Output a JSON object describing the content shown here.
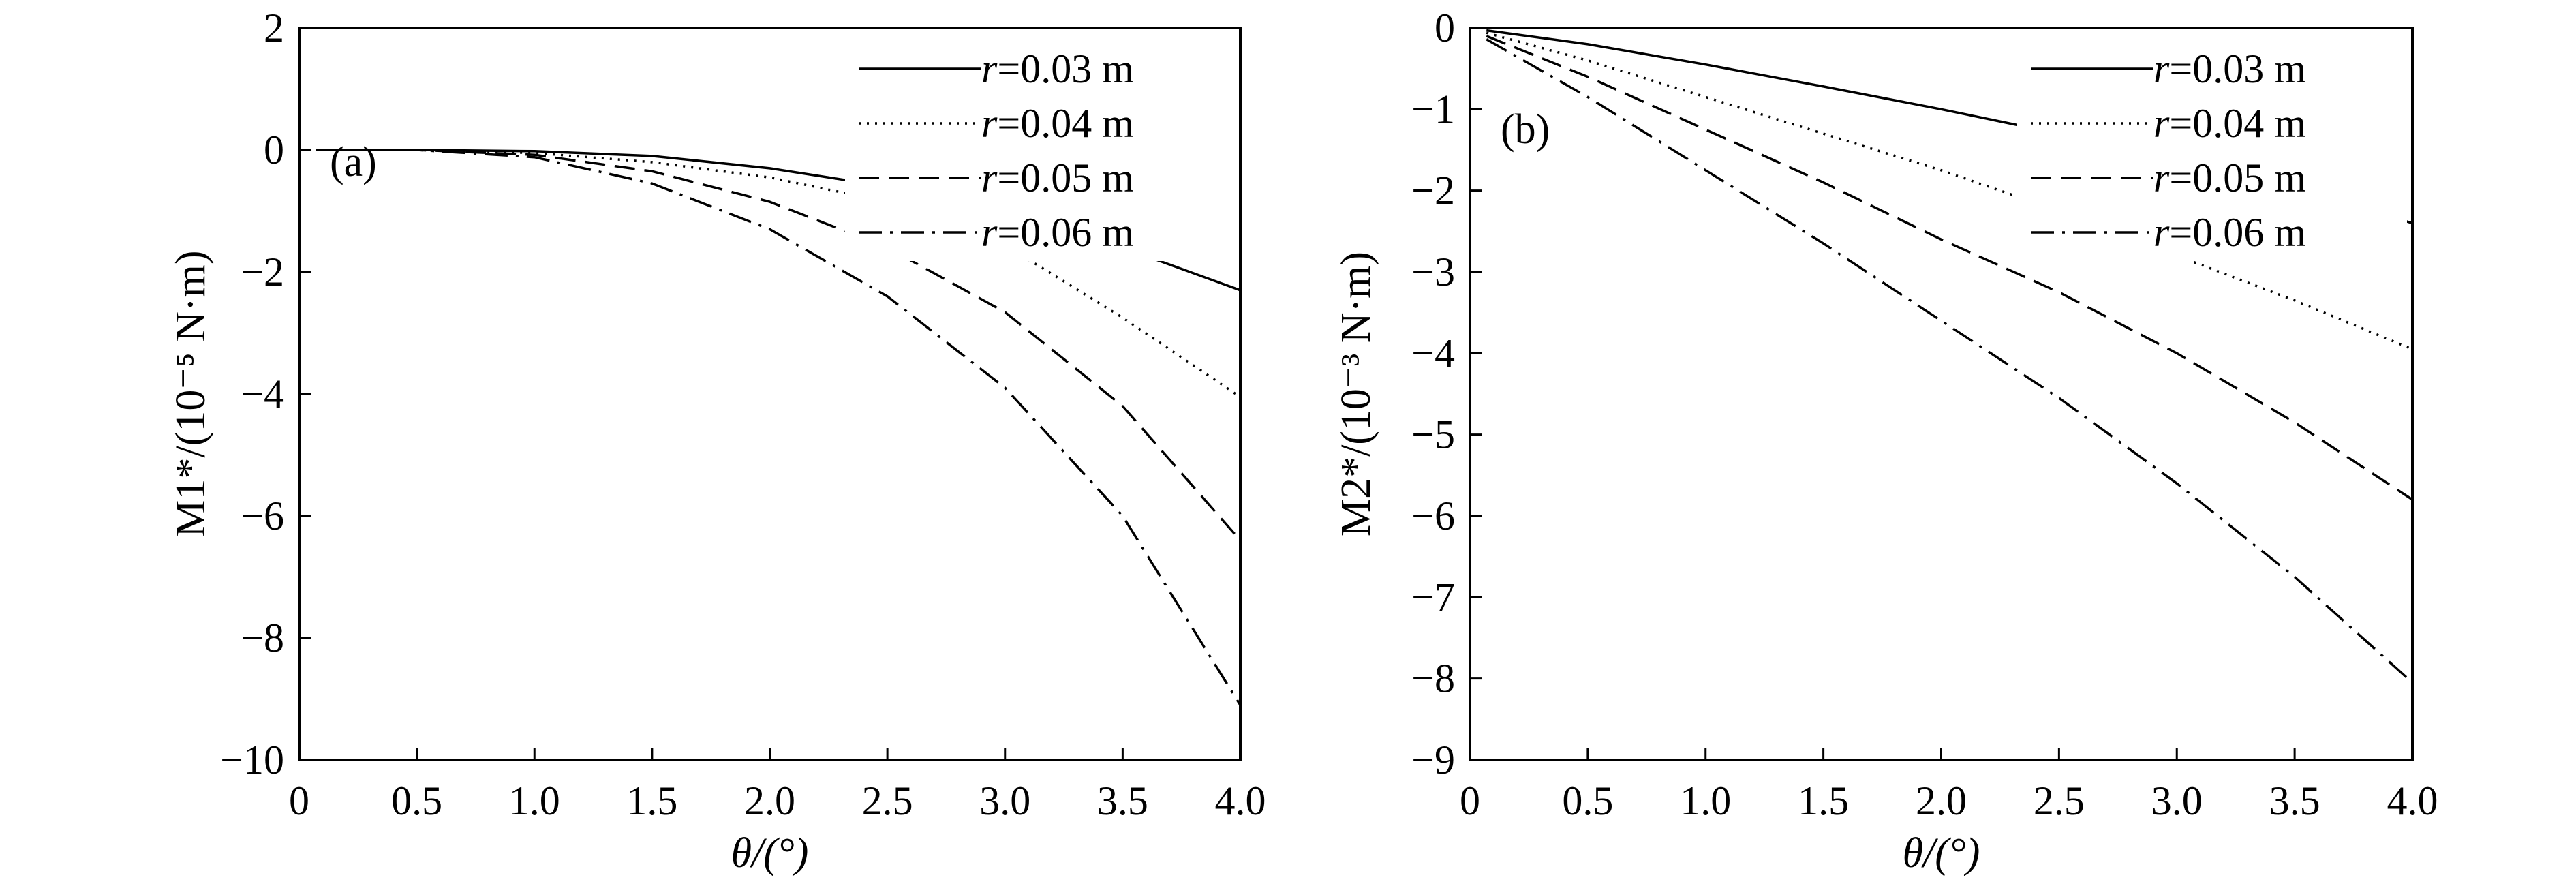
{
  "chart_data": [
    {
      "type": "line",
      "panel_label": "(a)",
      "title": "",
      "xlabel": "θ/(°)",
      "ylabel": "M1*/(10⁻⁵ N·m)",
      "ylabel_parts": {
        "sym": "M",
        "sub": "1",
        "rest": "*/(10⁻⁵ N·m)"
      },
      "xlim": [
        0,
        4.0
      ],
      "ylim": [
        -10,
        2
      ],
      "xticks": [
        0,
        0.5,
        1.0,
        1.5,
        2.0,
        2.5,
        3.0,
        3.5,
        4.0
      ],
      "xtick_labels": [
        "0",
        "0.5",
        "1.0",
        "1.5",
        "2.0",
        "2.5",
        "3.0",
        "3.5",
        "4.0"
      ],
      "yticks": [
        2,
        0,
        -2,
        -4,
        -6,
        -8,
        -10
      ],
      "ytick_labels": [
        "2",
        "0",
        "−2",
        "−4",
        "−6",
        "−8",
        "−10"
      ],
      "grid": false,
      "legend_position": "top-right",
      "x": [
        0.07,
        0.5,
        1.0,
        1.5,
        2.0,
        2.5,
        3.0,
        3.5,
        4.0
      ],
      "series": [
        {
          "name": "r=0.03 m",
          "r": "r",
          "val": "=0.03 m",
          "style": "solid",
          "values": [
            0,
            0,
            -0.02,
            -0.1,
            -0.3,
            -0.6,
            -1.05,
            -1.6,
            -2.3
          ]
        },
        {
          "name": "r=0.04 m",
          "r": "r",
          "val": "=0.04 m",
          "style": "dotted",
          "values": [
            0,
            0,
            -0.05,
            -0.2,
            -0.45,
            -0.85,
            -1.56,
            -2.75,
            -4.05
          ]
        },
        {
          "name": "r=0.05 m",
          "r": "r",
          "val": "=0.05 m",
          "style": "dashed",
          "values": [
            0,
            0,
            -0.08,
            -0.35,
            -0.85,
            -1.6,
            -2.66,
            -4.2,
            -6.4
          ]
        },
        {
          "name": "r=0.06 m",
          "r": "r",
          "val": "=0.06 m",
          "style": "dashdot",
          "values": [
            0,
            0,
            -0.12,
            -0.55,
            -1.3,
            -2.4,
            -3.9,
            -6.0,
            -9.1
          ]
        }
      ]
    },
    {
      "type": "line",
      "panel_label": "(b)",
      "title": "",
      "xlabel": "θ/(°)",
      "ylabel": "M2*/(10⁻³ N·m)",
      "ylabel_parts": {
        "sym": "M",
        "sub": "2",
        "rest": "*/(10⁻³ N·m)"
      },
      "xlim": [
        0,
        4.0
      ],
      "ylim": [
        -9,
        0
      ],
      "xticks": [
        0,
        0.5,
        1.0,
        1.5,
        2.0,
        2.5,
        3.0,
        3.5,
        4.0
      ],
      "xtick_labels": [
        "0",
        "0.5",
        "1.0",
        "1.5",
        "2.0",
        "2.5",
        "3.0",
        "3.5",
        "4.0"
      ],
      "yticks": [
        0,
        -1,
        -2,
        -3,
        -4,
        -5,
        -6,
        -7,
        -8,
        -9
      ],
      "ytick_labels": [
        "0",
        "−1",
        "−2",
        "−3",
        "−4",
        "−5",
        "−6",
        "−7",
        "−8",
        "−9"
      ],
      "grid": false,
      "legend_position": "top-right",
      "x": [
        0.07,
        0.5,
        1.0,
        1.5,
        2.0,
        2.5,
        3.0,
        3.5,
        4.0
      ],
      "series": [
        {
          "name": "r=0.03 m",
          "r": "r",
          "val": "=0.03 m",
          "style": "solid",
          "values": [
            -0.03,
            -0.2,
            -0.45,
            -0.72,
            -1.0,
            -1.3,
            -1.62,
            -1.98,
            -2.4
          ]
        },
        {
          "name": "r=0.04 m",
          "r": "r",
          "val": "=0.04 m",
          "style": "dotted",
          "values": [
            -0.06,
            -0.4,
            -0.85,
            -1.3,
            -1.75,
            -2.25,
            -2.8,
            -3.35,
            -3.95
          ]
        },
        {
          "name": "r=0.05 m",
          "r": "r",
          "val": "=0.05 m",
          "style": "dashed",
          "values": [
            -0.1,
            -0.6,
            -1.25,
            -1.9,
            -2.6,
            -3.25,
            -4.0,
            -4.85,
            -5.8
          ]
        },
        {
          "name": "r=0.06 m",
          "r": "r",
          "val": "=0.06 m",
          "style": "dashdot",
          "values": [
            -0.14,
            -0.85,
            -1.75,
            -2.65,
            -3.6,
            -4.55,
            -5.6,
            -6.75,
            -8.05
          ]
        }
      ]
    }
  ]
}
